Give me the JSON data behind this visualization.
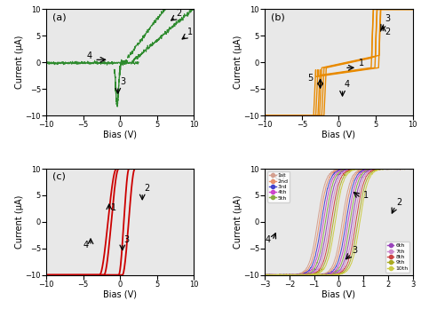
{
  "panel_bg": "#e8e8e8",
  "color_a": "#2e8b2e",
  "color_b": "#e88a00",
  "color_c": "#cc0000",
  "colors_d": [
    "#d4b0a0",
    "#e8a080",
    "#0000cd",
    "#cc44cc",
    "#88aa44",
    "#8844aa",
    "#cc88cc",
    "#cc4444",
    "#888844",
    "#aaaa44"
  ],
  "labels_d_top": [
    "1st",
    "2nd",
    "3rd",
    "4th",
    "5th"
  ],
  "labels_d_bot": [
    "6th",
    "7th",
    "8th",
    "9th",
    "10th"
  ],
  "xlabel": "Bias (V)",
  "ylabel": "Current (μA)"
}
